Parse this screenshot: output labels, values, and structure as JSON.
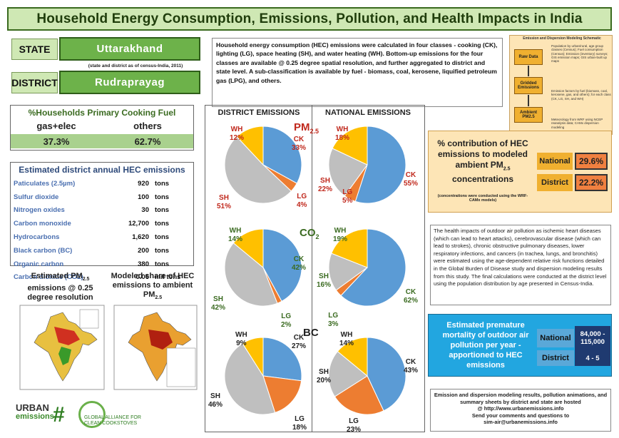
{
  "title": "Household Energy Consumption, Emissions, Pollution, and Health Impacts in India",
  "state": {
    "label": "STATE",
    "value": "Uttarakhand",
    "note": "(state and district as of census-India, 2011)"
  },
  "district": {
    "label": "DISTRICT",
    "value": "Rudraprayag"
  },
  "intro": "Household energy consumption (HEC) emissions were calculated in four classes - cooking (CK), lighting (LG), space heating (SH), and water heating (WH). Bottom-up emissions for the four classes are available @ 0.25 degree spatial resolution, and further aggregated to district and state level. A sub-classification is available by fuel - biomass, coal, kerosene, liquified petroleum gas (LPG), and others.",
  "cooking_fuel": {
    "title": "%Households Primary Cooking Fuel",
    "col1": "gas+elec",
    "col2": "others",
    "val1": "37.3%",
    "val2": "62.7%"
  },
  "emissions": {
    "title": "Estimated district annual HEC emissions",
    "rows": [
      {
        "name": "Paticulates (2.5µm)",
        "value": "920",
        "unit": "tons"
      },
      {
        "name": "Sulfur dioxide",
        "value": "100",
        "unit": "tons"
      },
      {
        "name": "Nitrogen oxides",
        "value": "30",
        "unit": "tons"
      },
      {
        "name": "Carbon monoxide",
        "value": "12,700",
        "unit": "tons"
      },
      {
        "name": "Hydrocarbons",
        "value": "1,620",
        "unit": "tons"
      },
      {
        "name": "Black carbon (BC)",
        "value": "200",
        "unit": "tons"
      },
      {
        "name": "Organic carbon",
        "value": "380",
        "unit": "tons"
      },
      {
        "name": "Carbon dioxide (CO2)",
        "value": "0.06",
        "unit": "mil tons"
      }
    ]
  },
  "maps": {
    "left_title": "Estimated PM",
    "left_sub": "2.5",
    "left_rest": " emissions @ 0.25 degree resolution",
    "right_title": "Modeled share of HEC emissions to ambient PM",
    "right_sub": "2.5"
  },
  "charts": {
    "district_header": "DISTRICT EMISSIONS",
    "national_header": "NATIONAL EMISSIONS",
    "pm_label": "PM",
    "pm_sub": "2.5",
    "co2_label": "CO",
    "co2_sub": "2",
    "bc_label": "BC"
  },
  "chart_data": [
    {
      "type": "pie",
      "title": "PM2.5 district",
      "categories": [
        "CK",
        "LG",
        "SH",
        "WH"
      ],
      "values": [
        33,
        4,
        51,
        12
      ]
    },
    {
      "type": "pie",
      "title": "PM2.5 national",
      "categories": [
        "CK",
        "LG",
        "SH",
        "WH"
      ],
      "values": [
        55,
        5,
        22,
        18
      ]
    },
    {
      "type": "pie",
      "title": "CO2 district",
      "categories": [
        "CK",
        "LG",
        "SH",
        "WH"
      ],
      "values": [
        42,
        2,
        42,
        14
      ]
    },
    {
      "type": "pie",
      "title": "CO2 national",
      "categories": [
        "CK",
        "LG",
        "SH",
        "WH"
      ],
      "values": [
        62,
        3,
        16,
        19
      ]
    },
    {
      "type": "pie",
      "title": "BC district",
      "categories": [
        "CK",
        "LG",
        "SH",
        "WH"
      ],
      "values": [
        27,
        18,
        46,
        9
      ]
    },
    {
      "type": "pie",
      "title": "BC national",
      "categories": [
        "CK",
        "LG",
        "SH",
        "WH"
      ],
      "values": [
        43,
        23,
        20,
        14
      ]
    }
  ],
  "pie_colors": {
    "CK": "#5b9bd5",
    "LG": "#ed7d31",
    "SH": "#bfbfbf",
    "WH": "#ffc000"
  },
  "flowchart": {
    "title": "Emission and Dispersion Modeling Schematic",
    "b1": "Raw Data",
    "b2": "Gridded Emissions",
    "b3": "Ambient PM2.5",
    "t1": "Population by urban/rural, age group classes (Census); Fuel consumption (Census); Emission (inventory) surveys; GIS emission maps; GIS urban-built up maps",
    "t2": "Emission factors by fuel (biomass, coal, kerosene, gas, and others); for each class (CK, LG, SH, and WH)",
    "t3": "Meteorology from WRF using NCEP reanalysis data; CAMx dispersion modeling"
  },
  "contribution": {
    "title": "% contribution of HEC emissions to modeled ambient PM",
    "sub": "2.5",
    "title2": " concentrations",
    "note": "(concentrations were conducted using the WRF-CAMx models)",
    "national_label": "National",
    "national_value": "29.6%",
    "district_label": "District",
    "district_value": "22.2%"
  },
  "health": "The health impacts of outdoor air pollution as ischemic heart diseases (which can lead to heart attacks), cerebrovascular disease (which can lead to strokes), chronic obstructive pulmonary diseases, lower respiratory infections, and cancers (in trachea, lungs, and bronchitis) were estimated using the age-dependent relative risk functions detailed in the Global Burden of Disease study and dispersion modeling results from this study. The final calculations were conducted at the district level using the population distribution by age presented in Census-India.",
  "mortality": {
    "title": "Estimated premature mortality of outdoor air pollution per year - apportioned to HEC emissions",
    "national_label": "National",
    "national_value": "84,000 - 115,000",
    "district_label": "District",
    "district_value": "4 - 5"
  },
  "footer": {
    "l1": "Emission and dispersion modeling results, pollution animations, and summary sheets by district and state are hosted",
    "l2": "@ http://www.urbanemissions.info",
    "l3": "Send your comments and questions to",
    "l4": "sim-air@urbanemissions.info"
  },
  "logos": {
    "urban": "URBAN",
    "emissions": "emissions",
    ".info": ".info",
    "gacc1": "GLOBAL ALLIANCE FOR",
    "gacc2": "CLEAN COOKSTOVES"
  }
}
